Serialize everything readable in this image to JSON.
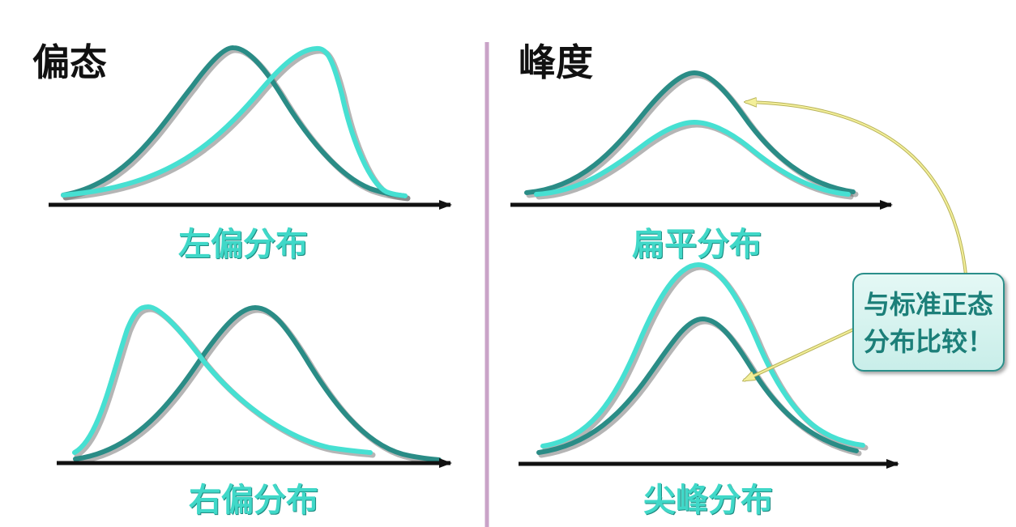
{
  "skewness": {
    "heading": "偏态",
    "left_skew_label": "左偏分布",
    "right_skew_label": "右偏分布"
  },
  "kurtosis": {
    "heading": "峰度",
    "platykurtic_label": "扁平分布",
    "leptokurtic_label": "尖峰分布"
  },
  "callout": {
    "line1": "与标准正态",
    "line2": "分布比较！"
  },
  "colors": {
    "normal_curve": "#2a8c86",
    "compared_curve": "#46e0d2",
    "axis": "#111111",
    "divider": "#c9a3c7",
    "caption_text": "#40d8c8",
    "callout_border": "#2a8f8a",
    "callout_text": "#1c7f79",
    "leader_line": "#f3ef9a"
  },
  "icons": {
    "axis_arrow": "arrowhead-right",
    "callout_pointer": "arrowhead"
  }
}
